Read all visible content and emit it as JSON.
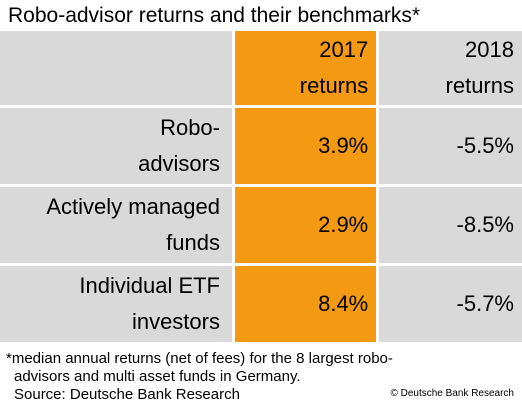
{
  "chart_data": {
    "type": "table",
    "title": "Robo-advisor returns and their benchmarks*",
    "columns": [
      "",
      "2017 returns",
      "2018 returns"
    ],
    "header": {
      "col2_line1": "2017",
      "col2_line2": "returns",
      "col3_line1": "2018",
      "col3_line2": "returns"
    },
    "rows": [
      {
        "label_line1": "Robo-",
        "label_line2": "advisors",
        "returns_2017": "3.9%",
        "returns_2018": "-5.5%"
      },
      {
        "label_line1": "Actively managed",
        "label_line2": "funds",
        "returns_2017": "2.9%",
        "returns_2018": "-8.5%"
      },
      {
        "label_line1": "Individual ETF",
        "label_line2": "investors",
        "returns_2017": "8.4%",
        "returns_2018": "-5.7%"
      }
    ],
    "values_2017": [
      3.9,
      2.9,
      8.4
    ],
    "values_2018": [
      -5.5,
      -8.5,
      -5.7
    ],
    "highlight_color": "#f39a12",
    "cell_color": "#d9d9d9"
  },
  "footnote": {
    "line1": "*median annual returns (net of fees) for the 8 largest robo-",
    "line2": "advisors and multi asset funds in Germany.",
    "line3": "Source: Deutsche Bank Research"
  },
  "credit": "© Deutsche Bank Research"
}
